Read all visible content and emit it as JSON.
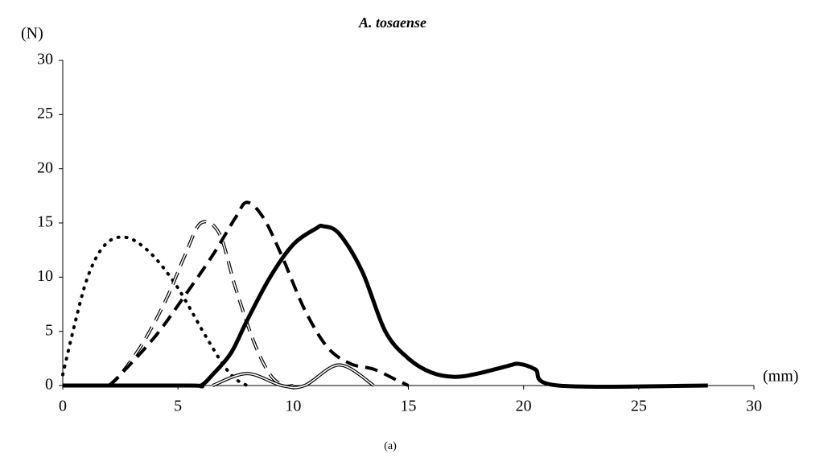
{
  "chart_data": {
    "type": "line",
    "title": "A. tosaense",
    "subtitle": "(a)",
    "x_label": "(mm)",
    "y_label": "(N)",
    "xlim": [
      0,
      30
    ],
    "xticks": [
      0,
      5,
      10,
      15,
      20,
      25,
      30
    ],
    "ylim": [
      0,
      30
    ],
    "yticks": [
      0,
      5,
      10,
      15,
      20,
      25,
      30
    ],
    "grid": false,
    "series": [
      {
        "color": "#000000",
        "style": "dotted",
        "width": 4,
        "double": false,
        "x": [
          0,
          0.5,
          1,
          1.5,
          2,
          2.5,
          3,
          3.5,
          4,
          4.5,
          5,
          5.5,
          6,
          6.5,
          7,
          7.5,
          8
        ],
        "values": [
          1,
          5.5,
          9.5,
          12,
          13.3,
          13.7,
          13.5,
          12.8,
          11.8,
          10.5,
          9,
          7.2,
          5.3,
          3.5,
          1.8,
          0.6,
          0
        ]
      },
      {
        "color": "#000000",
        "style": "dashed",
        "width": 4,
        "double": true,
        "x": [
          2,
          2.5,
          3.5,
          4.5,
          5.3,
          6,
          6.8,
          7.5,
          8.3,
          9,
          9.6,
          10
        ],
        "values": [
          0,
          1,
          4,
          8,
          12,
          15,
          14,
          9,
          4,
          1,
          0,
          0
        ]
      },
      {
        "color": "#000000",
        "style": "dashed",
        "width": 4,
        "double": false,
        "x": [
          2,
          2.5,
          4,
          5.2,
          6.5,
          7.5,
          8,
          8.7,
          9.5,
          10.5,
          11.5,
          12.5,
          13.5,
          14.5,
          15
        ],
        "values": [
          0,
          1,
          4.5,
          8,
          12,
          15.5,
          16.9,
          15.5,
          12,
          7,
          3.5,
          2,
          1.5,
          0.5,
          0
        ]
      },
      {
        "color": "#000000",
        "style": "solid",
        "width": 5,
        "double": false,
        "x": [
          0,
          5.5,
          6,
          6.5,
          7.3,
          8,
          9,
          10,
          11,
          11.3,
          12,
          13,
          14,
          15,
          16,
          17,
          18,
          19.3,
          19.8,
          20.5,
          21.5,
          28
        ],
        "values": [
          0,
          0,
          0,
          1,
          3,
          6,
          10,
          13,
          14.5,
          14.7,
          14,
          10.5,
          5,
          2.5,
          1.2,
          0.8,
          1.1,
          1.8,
          2,
          1.5,
          0,
          0
        ]
      },
      {
        "color": "#000000",
        "style": "solid",
        "width": 4,
        "double": true,
        "x": [
          6.5,
          8,
          9.5,
          10.5,
          12,
          13.5
        ],
        "values": [
          0,
          1.1,
          0,
          0,
          1.9,
          0
        ]
      }
    ]
  }
}
